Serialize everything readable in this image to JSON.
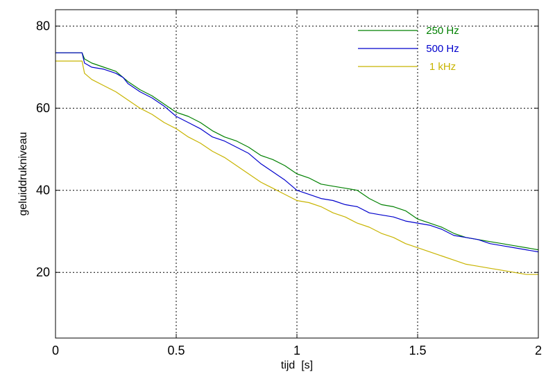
{
  "chart_data": {
    "type": "line",
    "title": "",
    "xlabel": "tijd  [s]",
    "ylabel": "geluiddrukniveau",
    "xlim": [
      0,
      2
    ],
    "ylim": [
      4,
      84
    ],
    "xticks": [
      0,
      0.5,
      1,
      1.5,
      2
    ],
    "xtick_labels": [
      "0",
      "0.5",
      "1",
      "1.5",
      "2"
    ],
    "yticks": [
      20,
      40,
      60,
      80
    ],
    "ytick_labels": [
      "20",
      "40",
      "60",
      "80"
    ],
    "grid": true,
    "legend_position": "top-right",
    "series": [
      {
        "name": "250 Hz",
        "color": "#008000",
        "x": [
          0,
          0.05,
          0.11,
          0.12,
          0.15,
          0.2,
          0.25,
          0.28,
          0.3,
          0.35,
          0.4,
          0.45,
          0.5,
          0.55,
          0.6,
          0.65,
          0.7,
          0.75,
          0.8,
          0.85,
          0.9,
          0.95,
          1.0,
          1.05,
          1.1,
          1.15,
          1.2,
          1.25,
          1.3,
          1.35,
          1.4,
          1.45,
          1.5,
          1.55,
          1.6,
          1.65,
          1.7,
          1.75,
          1.8,
          1.85,
          1.9,
          1.95,
          2.0
        ],
        "y": [
          73.5,
          73.5,
          73.5,
          72.0,
          71.0,
          70.0,
          69.0,
          67.5,
          66.5,
          64.5,
          63.0,
          61.0,
          59.0,
          58.0,
          56.5,
          54.5,
          53.0,
          52.0,
          50.5,
          48.5,
          47.5,
          46.0,
          44.0,
          43.0,
          41.5,
          41.0,
          40.5,
          40.0,
          38.0,
          36.5,
          36.0,
          35.0,
          33.0,
          32.0,
          31.0,
          29.5,
          28.5,
          28.0,
          27.5,
          27.0,
          26.5,
          26.0,
          25.5
        ]
      },
      {
        "name": "500 Hz",
        "color": "#0000cc",
        "x": [
          0,
          0.05,
          0.11,
          0.12,
          0.15,
          0.2,
          0.25,
          0.28,
          0.3,
          0.35,
          0.4,
          0.45,
          0.5,
          0.55,
          0.6,
          0.65,
          0.7,
          0.75,
          0.8,
          0.85,
          0.9,
          0.95,
          1.0,
          1.05,
          1.1,
          1.15,
          1.2,
          1.25,
          1.3,
          1.35,
          1.4,
          1.45,
          1.5,
          1.55,
          1.6,
          1.65,
          1.7,
          1.75,
          1.8,
          1.85,
          1.9,
          1.95,
          2.0
        ],
        "y": [
          73.5,
          73.5,
          73.5,
          71.0,
          70.0,
          69.5,
          68.5,
          67.5,
          66.0,
          64.0,
          62.5,
          60.5,
          58.0,
          56.5,
          55.0,
          53.0,
          52.0,
          50.5,
          49.0,
          46.5,
          44.5,
          42.5,
          40.0,
          39.0,
          38.0,
          37.5,
          36.5,
          36.0,
          34.5,
          34.0,
          33.5,
          32.5,
          32.0,
          31.5,
          30.5,
          29.0,
          28.5,
          28.0,
          27.0,
          26.5,
          26.0,
          25.5,
          25.0
        ]
      },
      {
        "name": "1 kHz",
        "color": "#c8b400",
        "x": [
          0,
          0.05,
          0.11,
          0.12,
          0.15,
          0.2,
          0.25,
          0.3,
          0.35,
          0.4,
          0.45,
          0.5,
          0.55,
          0.6,
          0.65,
          0.7,
          0.75,
          0.8,
          0.85,
          0.9,
          0.95,
          1.0,
          1.05,
          1.1,
          1.15,
          1.2,
          1.25,
          1.3,
          1.35,
          1.4,
          1.45,
          1.5,
          1.55,
          1.6,
          1.65,
          1.7,
          1.75,
          1.8,
          1.85,
          1.9,
          1.95,
          2.0
        ],
        "y": [
          71.5,
          71.5,
          71.5,
          68.5,
          67.0,
          65.5,
          64.0,
          62.0,
          60.0,
          58.5,
          56.5,
          55.0,
          53.0,
          51.5,
          49.5,
          48.0,
          46.0,
          44.0,
          42.0,
          40.5,
          39.0,
          37.5,
          37.0,
          36.0,
          34.5,
          33.5,
          32.0,
          31.0,
          29.5,
          28.5,
          27.0,
          26.0,
          25.0,
          24.0,
          23.0,
          22.0,
          21.5,
          21.0,
          20.5,
          20.0,
          19.5,
          19.5
        ]
      }
    ]
  }
}
